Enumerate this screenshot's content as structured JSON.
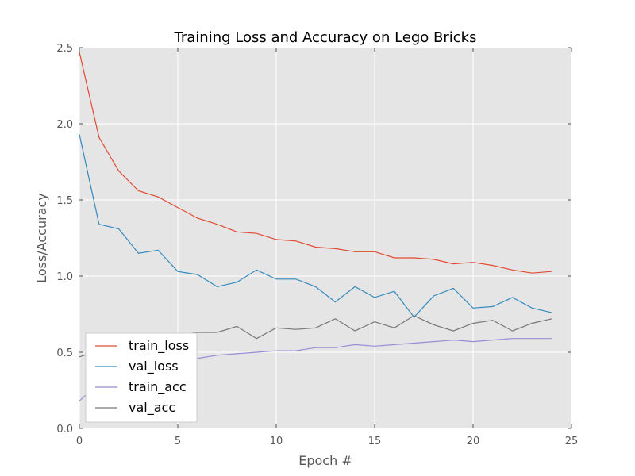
{
  "chart_data": {
    "type": "line",
    "title": "Training Loss and Accuracy on Lego Bricks",
    "xlabel": "Epoch #",
    "ylabel": "Loss/Accuracy",
    "xlim": [
      0,
      25
    ],
    "ylim": [
      0.0,
      2.5
    ],
    "xticks": [
      "0",
      "5",
      "10",
      "15",
      "20",
      "25"
    ],
    "yticks": [
      "0.0",
      "0.5",
      "1.0",
      "1.5",
      "2.0",
      "2.5"
    ],
    "grid": true,
    "legend_position": "lower-left",
    "background_color": "#e5e5e5",
    "x": [
      0,
      1,
      2,
      3,
      4,
      5,
      6,
      7,
      8,
      9,
      10,
      11,
      12,
      13,
      14,
      15,
      16,
      17,
      18,
      19,
      20,
      21,
      22,
      23,
      24
    ],
    "series": [
      {
        "name": "train_loss",
        "color": "#e24a33",
        "values": [
          2.47,
          1.91,
          1.69,
          1.56,
          1.52,
          1.45,
          1.38,
          1.34,
          1.29,
          1.28,
          1.24,
          1.23,
          1.19,
          1.18,
          1.16,
          1.16,
          1.12,
          1.12,
          1.11,
          1.08,
          1.09,
          1.07,
          1.04,
          1.02,
          1.03
        ]
      },
      {
        "name": "val_loss",
        "color": "#348abd",
        "values": [
          1.93,
          1.34,
          1.31,
          1.15,
          1.17,
          1.03,
          1.01,
          0.93,
          0.96,
          1.04,
          0.98,
          0.98,
          0.93,
          0.83,
          0.93,
          0.86,
          0.9,
          0.73,
          0.87,
          0.92,
          0.79,
          0.8,
          0.86,
          0.79,
          0.76
        ]
      },
      {
        "name": "train_acc",
        "color": "#988ed5",
        "values": [
          0.18,
          0.3,
          0.36,
          0.4,
          0.43,
          0.44,
          0.46,
          0.48,
          0.49,
          0.5,
          0.51,
          0.51,
          0.53,
          0.53,
          0.55,
          0.54,
          0.55,
          0.56,
          0.57,
          0.58,
          0.57,
          0.58,
          0.59,
          0.59,
          0.59
        ]
      },
      {
        "name": "val_acc",
        "color": "#777777",
        "values": [
          0.47,
          0.51,
          0.53,
          0.57,
          0.58,
          0.61,
          0.63,
          0.63,
          0.67,
          0.59,
          0.66,
          0.65,
          0.66,
          0.72,
          0.64,
          0.7,
          0.66,
          0.74,
          0.68,
          0.64,
          0.69,
          0.71,
          0.64,
          0.69,
          0.72
        ]
      }
    ]
  }
}
